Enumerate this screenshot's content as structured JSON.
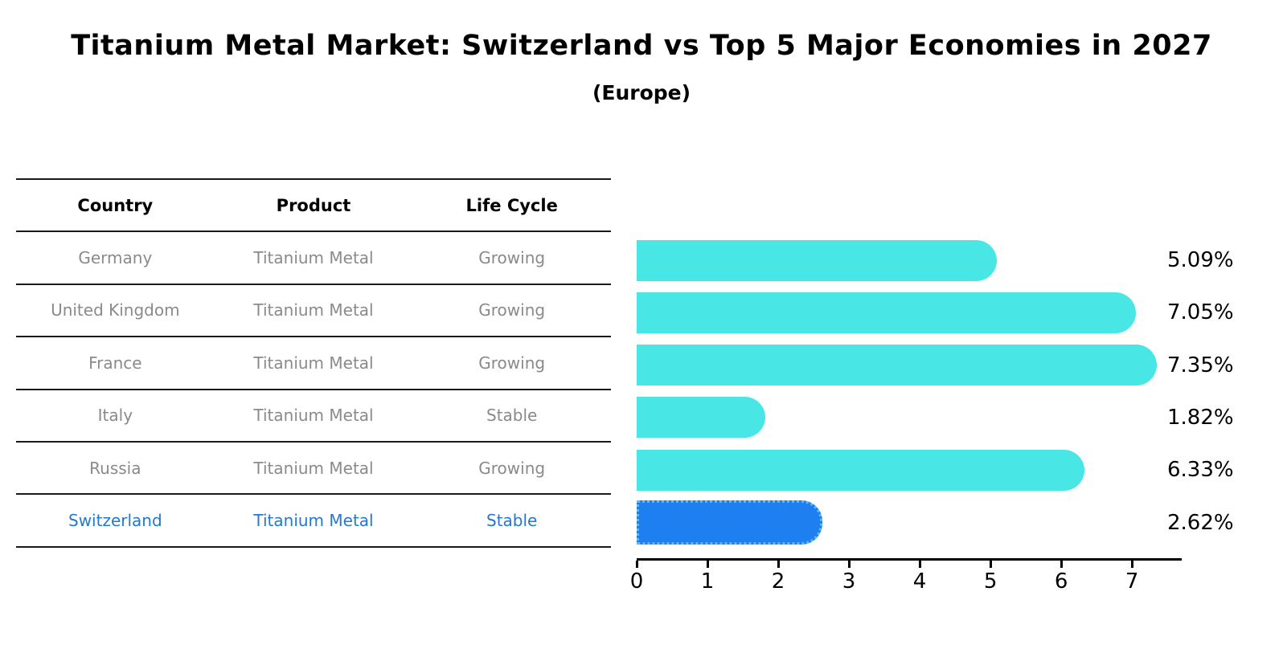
{
  "header": {
    "title": "Titanium Metal Market: Switzerland vs Top 5 Major Economies in 2027",
    "subtitle": "(Europe)"
  },
  "table": {
    "columns": [
      "Country",
      "Product",
      "Life Cycle"
    ],
    "rows": [
      {
        "country": "Germany",
        "product": "Titanium Metal",
        "life_cycle": "Growing",
        "highlight": false
      },
      {
        "country": "United Kingdom",
        "product": "Titanium Metal",
        "life_cycle": "Growing",
        "highlight": false
      },
      {
        "country": "France",
        "product": "Titanium Metal",
        "life_cycle": "Growing",
        "highlight": false
      },
      {
        "country": "Italy",
        "product": "Titanium Metal",
        "life_cycle": "Stable",
        "highlight": false
      },
      {
        "country": "Russia",
        "product": "Titanium Metal",
        "life_cycle": "Growing",
        "highlight": false
      },
      {
        "country": "Switzerland",
        "product": "Titanium Metal",
        "life_cycle": "Stable",
        "highlight": true
      }
    ]
  },
  "chart_data": {
    "type": "bar",
    "orientation": "horizontal",
    "title": "Titanium Metal Market: Switzerland vs Top 5 Major Economies in 2027 (Europe)",
    "categories": [
      "Germany",
      "United Kingdom",
      "France",
      "Italy",
      "Russia",
      "Switzerland"
    ],
    "values": [
      5.09,
      7.05,
      7.35,
      1.82,
      6.33,
      2.62
    ],
    "value_labels": [
      "5.09%",
      "7.05%",
      "7.35%",
      "1.82%",
      "6.33%",
      "2.62%"
    ],
    "x_ticks": [
      0,
      1,
      2,
      3,
      4,
      5,
      6,
      7
    ],
    "xlim": [
      0,
      7.68
    ],
    "grid": false,
    "legend": false,
    "highlight_index": 5
  },
  "colors": {
    "bar_cyan": "#48E6E4",
    "bar_blue": "#1E80F0",
    "highlight_text": "#2478CF",
    "row_text": "#8A8A8A",
    "line": "#1A1A1A"
  }
}
